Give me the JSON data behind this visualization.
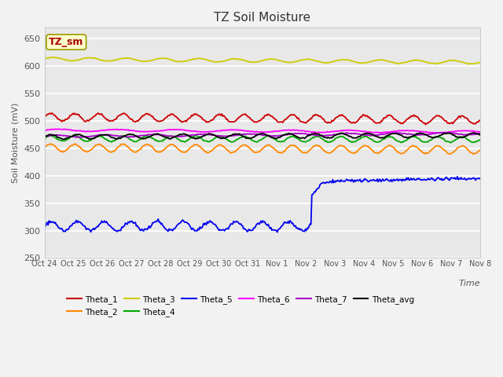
{
  "title": "TZ Soil Moisture",
  "ylabel": "Soil Moisture (mV)",
  "xlabel": "Time",
  "ylim": [
    250,
    670
  ],
  "yticks": [
    250,
    300,
    350,
    400,
    450,
    500,
    550,
    600,
    650
  ],
  "fig_bg": "#f2f2f2",
  "plot_bg": "#e8e8e8",
  "series_order": [
    "Theta_1",
    "Theta_2",
    "Theta_3",
    "Theta_4",
    "Theta_5",
    "Theta_6",
    "Theta_7",
    "Theta_avg"
  ],
  "series": {
    "Theta_1": {
      "color": "#cc0000",
      "base": 507,
      "amplitude": 7,
      "freq": 1.2,
      "trend": -0.5,
      "noise": 0.8
    },
    "Theta_2": {
      "color": "#ff8800",
      "base": 451,
      "amplitude": 7,
      "freq": 1.2,
      "trend": -0.4,
      "noise": 0.5
    },
    "Theta_3": {
      "color": "#cccc00",
      "base": 613,
      "amplitude": 3,
      "freq": 0.8,
      "trend": -0.6,
      "noise": 0.3
    },
    "Theta_4": {
      "color": "#00aa00",
      "base": 468,
      "amplitude": 5,
      "freq": 1.2,
      "trend": -0.2,
      "noise": 0.5
    },
    "Theta_5": {
      "color": "#0000ee",
      "base": 310,
      "amplitude": 7,
      "freq": 1.1,
      "trend": 0,
      "noise": 1.0
    },
    "Theta_6": {
      "color": "#ff00ff",
      "base": 483,
      "amplitude": 2,
      "freq": 0.5,
      "trend": -0.3,
      "noise": 0.3
    },
    "Theta_7": {
      "color": "#aa00cc",
      "base": 472,
      "amplitude": 2,
      "freq": 0.6,
      "trend": 0.5,
      "noise": 0.3
    },
    "Theta_avg": {
      "color": "#000000",
      "base": 471,
      "amplitude": 4,
      "freq": 1.1,
      "trend": 0.3,
      "noise": 0.5
    }
  },
  "n_points": 480,
  "xtick_labels": [
    "Oct 24",
    "Oct 25",
    "Oct 26",
    "Oct 27",
    "Oct 28",
    "Oct 29",
    "Oct 30",
    "Oct 31",
    "Nov 1",
    "Nov 2",
    "Nov 3",
    "Nov 4",
    "Nov 5",
    "Nov 6",
    "Nov 7",
    "Nov 8"
  ],
  "theta5_jump_day": 9.2,
  "theta5_before": 308,
  "theta5_after": 388,
  "theta5_peak": 395,
  "annotation_label": "TZ_sm",
  "annotation_color": "#aa0000",
  "annotation_bg": "#ffffcc",
  "annotation_edge": "#999900"
}
